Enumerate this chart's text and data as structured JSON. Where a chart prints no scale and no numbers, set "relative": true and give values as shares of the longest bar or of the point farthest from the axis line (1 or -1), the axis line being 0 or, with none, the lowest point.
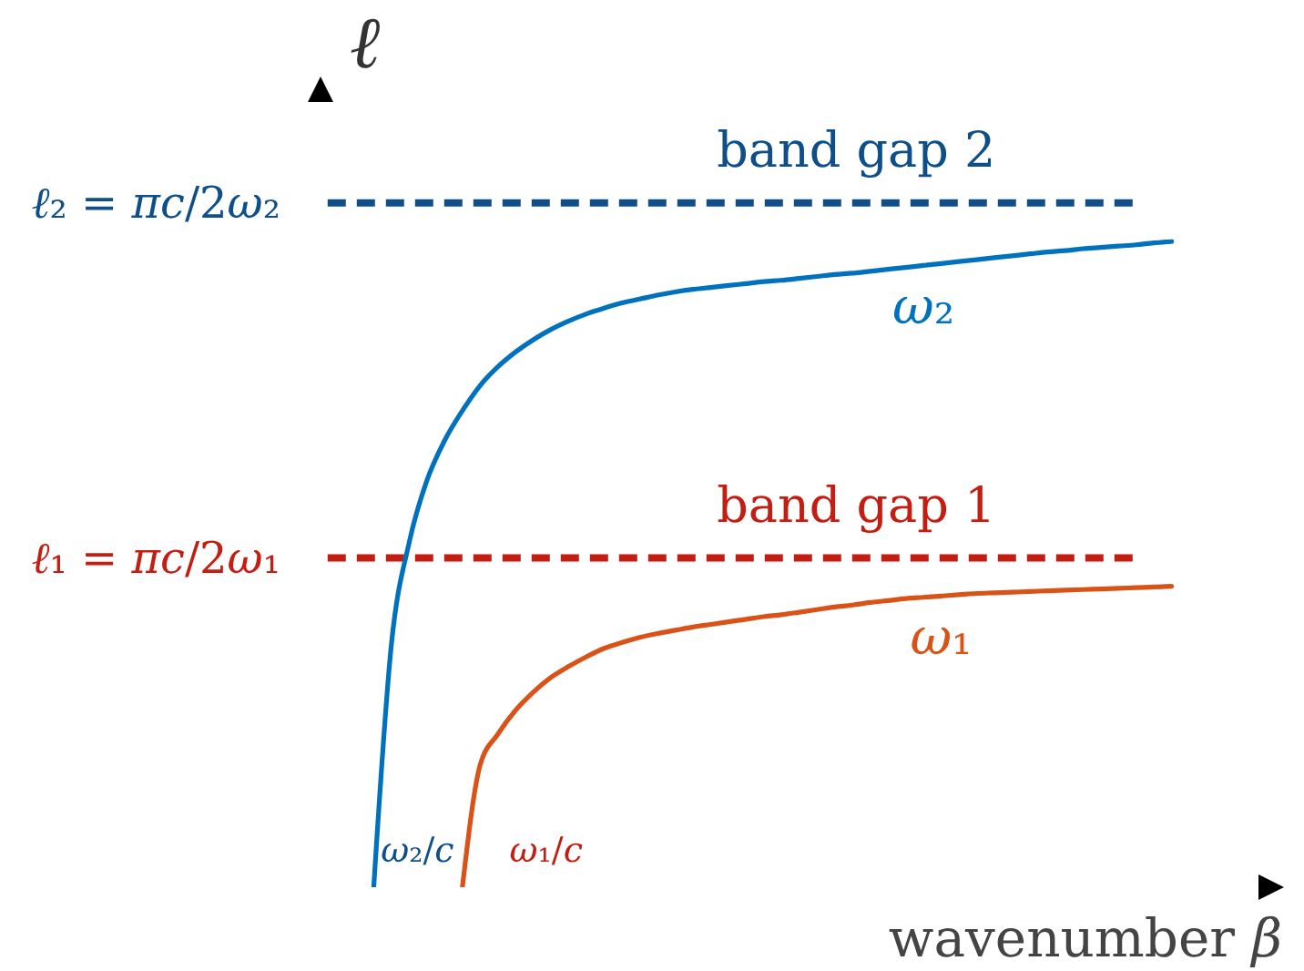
{
  "chart_data": {
    "type": "line",
    "ylabel": "ℓ",
    "xlabel": "wavenumber β",
    "relative": true,
    "line_style": "solid",
    "categories": [
      null,
      null,
      null,
      null,
      null,
      null,
      null,
      null,
      null,
      null,
      null,
      null,
      null,
      null,
      null,
      null,
      null,
      null,
      null,
      null,
      null,
      null,
      null,
      null,
      null,
      null,
      null,
      null,
      null,
      null,
      null,
      null,
      null,
      null,
      null,
      null,
      null,
      null,
      null,
      null,
      null,
      null,
      null,
      null,
      null,
      null,
      null,
      null,
      null,
      null,
      null,
      null,
      null,
      null
    ],
    "series": [
      {
        "name": "ω₂",
        "color": "#0072bd",
        "values": [
          null,
          null,
          null,
          0,
          0.377,
          0.534,
          0.63,
          0.692,
          0.738,
          0.777,
          0.806,
          0.829,
          0.848,
          0.864,
          0.877,
          0.888,
          0.897,
          0.905,
          0.911,
          0.917,
          0.922,
          0.926,
          0.929,
          0.932,
          0.935,
          0.938,
          0.94,
          0.943,
          0.946,
          0.949,
          0.951,
          0.954,
          0.957,
          0.96,
          0.963,
          0.966,
          0.969,
          0.972,
          0.975,
          0.978,
          0.981,
          0.984,
          0.986,
          0.989,
          0.991,
          0.993,
          0.995,
          0.998,
          1,
          null,
          null,
          null,
          null,
          null
        ]
      },
      {
        "name": "ω₁",
        "color": "#d95319",
        "values": [
          null,
          null,
          null,
          null,
          null,
          null,
          null,
          null,
          0,
          0.189,
          0.237,
          0.274,
          0.302,
          0.325,
          0.342,
          0.357,
          0.37,
          0.379,
          0.387,
          0.393,
          0.398,
          0.403,
          0.407,
          0.411,
          0.415,
          0.419,
          0.422,
          0.426,
          0.43,
          0.434,
          0.437,
          0.441,
          0.444,
          0.447,
          0.449,
          0.451,
          0.453,
          0.455,
          0.456,
          0.457,
          0.458,
          0.459,
          0.46,
          0.461,
          0.462,
          0.463,
          0.464,
          0.465,
          0.466,
          null,
          null,
          null,
          null,
          null
        ]
      }
    ],
    "ref_lines": [
      {
        "axis": "y",
        "value": 1.06,
        "label": "ℓ₂ = πc/2ω₂",
        "color": "#0e4f8a",
        "line_style": "dashed"
      },
      {
        "axis": "y",
        "value": 0.51,
        "label": "ℓ₁ = πc/2ω₁",
        "color": "#c41e12",
        "line_style": "dashed"
      }
    ],
    "annotations": [
      {
        "text": "band gap 2",
        "y": 1.06
      },
      {
        "text": "band gap 1",
        "y": 0.51
      },
      "ω₂/c",
      "ω₁/c"
    ]
  }
}
